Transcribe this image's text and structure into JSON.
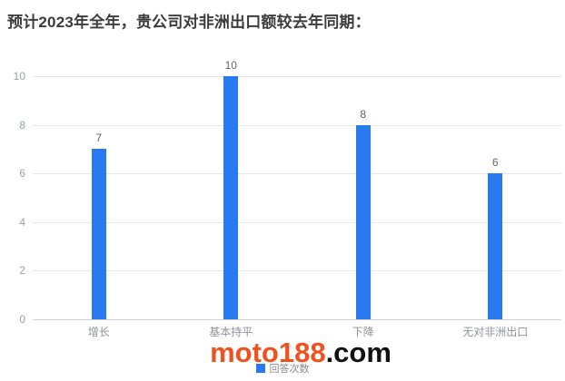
{
  "title": "预计2023年全年，贵公司对非洲出口额较去年同期：",
  "chart_data": {
    "type": "bar",
    "categories": [
      "增长",
      "基本持平",
      "下降",
      "无对非洲出口"
    ],
    "values": [
      7,
      10,
      8,
      6
    ],
    "series_name": "回答次数",
    "title": "预计2023年全年，贵公司对非洲出口额较去年同期：",
    "xlabel": "",
    "ylabel": "",
    "ylim": [
      0,
      10
    ],
    "yticks": [
      0,
      2,
      4,
      6,
      8,
      10
    ],
    "grid": true,
    "legend_position": "bottom",
    "bar_color": "#2979f0"
  },
  "legend": {
    "label": "回答次数",
    "swatch_color": "#2979f0"
  },
  "watermark": {
    "brand": "moto188",
    "suffix": ".com",
    "brand_color": "#f1511f",
    "suffix_color": "#111111"
  },
  "colors": {
    "grid": "#e7e7e7",
    "baseline": "#d2d2d2",
    "axis_label": "#9aa0a6",
    "value_label": "#5f6368",
    "title": "#3c3c3c"
  }
}
